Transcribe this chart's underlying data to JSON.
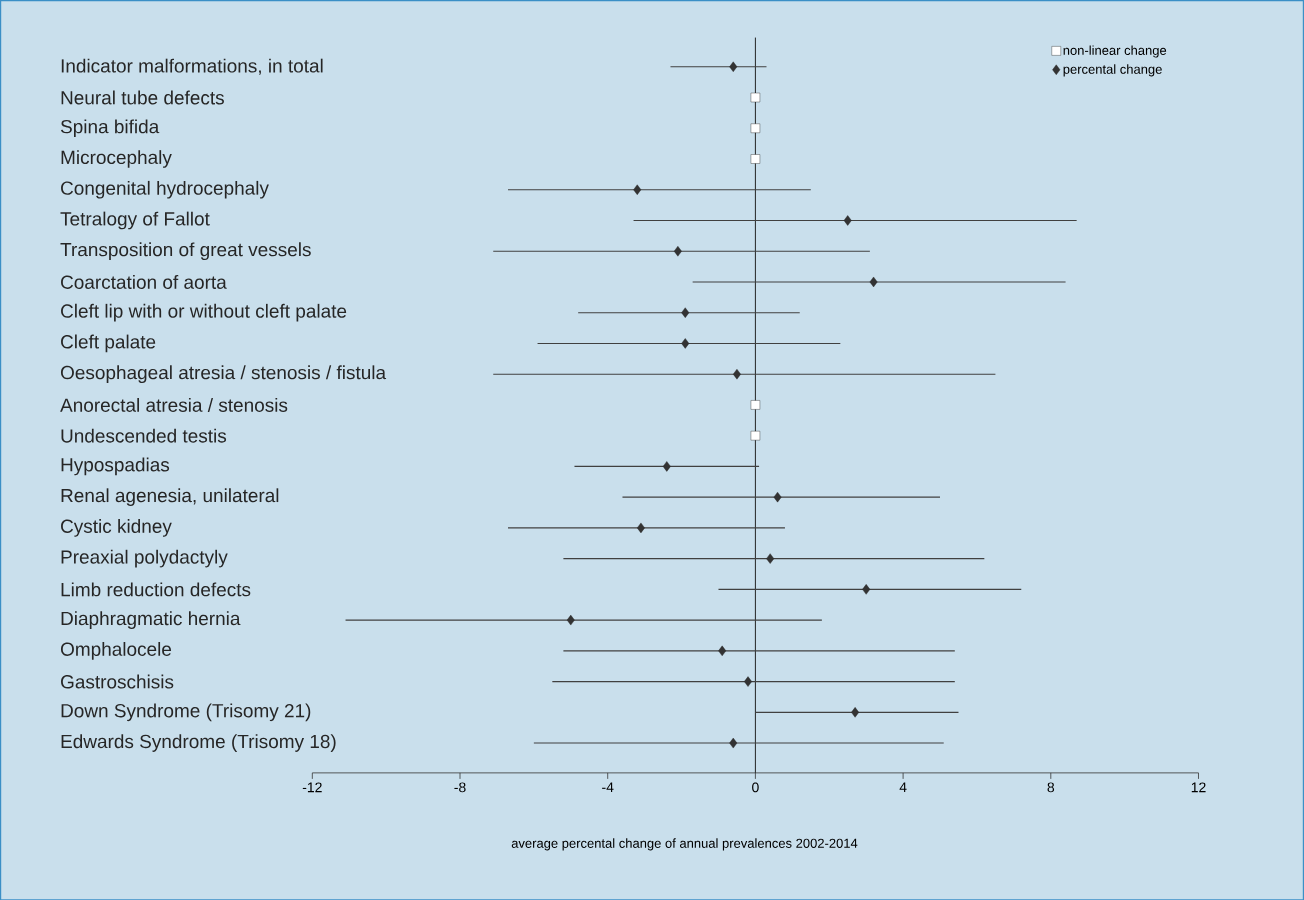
{
  "chart_data": {
    "type": "scatter",
    "orientation": "horizontal",
    "xlabel": "average percental change of annual prevalences 2002-2014",
    "categories": [
      "Indicator malformations, in total",
      "Neural tube defects",
      "Spina bifida",
      "Microcephaly",
      "Congenital hydrocephaly",
      "Tetralogy of Fallot",
      "Transposition of great vessels",
      "Coarctation of aorta",
      "Cleft lip with or without cleft palate",
      "Cleft palate",
      "Oesophageal atresia / stenosis / fistula",
      "Anorectal atresia / stenosis",
      "Undescended testis",
      "Hypospadias",
      "Renal agenesia, unilateral",
      "Cystic kidney",
      "Preaxial polydactyly",
      "Limb reduction defects",
      "Diaphragmatic hernia",
      "Omphalocele",
      "Gastroschisis",
      "Down Syndrome (Trisomy 21)",
      "Edwards Syndrome (Trisomy 18)"
    ],
    "xlim": [
      -12,
      12
    ],
    "xticks": [
      -12,
      -8,
      -4,
      0,
      4,
      8,
      12
    ],
    "legend": "top right",
    "ref_lines": [
      {
        "axis": "x",
        "value": 0,
        "color": "#222222"
      }
    ],
    "series": [
      {
        "name": "non-linear change",
        "color": "#ffffff",
        "marker": "square",
        "values": [
          null,
          0,
          0,
          0,
          null,
          null,
          null,
          null,
          null,
          null,
          null,
          0,
          0,
          null,
          null,
          null,
          null,
          null,
          null,
          null,
          null,
          null,
          null
        ]
      },
      {
        "name": "percental change",
        "color": "#333333",
        "marker": "diamond",
        "values": [
          -0.6,
          null,
          null,
          null,
          -3.2,
          2.5,
          -2.1,
          3.2,
          -1.9,
          -1.9,
          -0.5,
          null,
          null,
          -2.4,
          0.6,
          -3.1,
          0.4,
          3.0,
          -5.0,
          -0.9,
          -0.2,
          2.7,
          -0.6
        ],
        "errors": [
          [
            -2.3,
            0.3
          ],
          null,
          null,
          null,
          [
            -6.7,
            1.5
          ],
          [
            -3.3,
            8.7
          ],
          [
            -7.1,
            3.1
          ],
          [
            -1.7,
            8.4
          ],
          [
            -4.8,
            1.2
          ],
          [
            -5.9,
            2.3
          ],
          [
            -7.1,
            6.5
          ],
          null,
          null,
          [
            -4.9,
            0.1
          ],
          [
            -3.6,
            5.0
          ],
          [
            -6.7,
            0.8
          ],
          [
            -5.2,
            6.2
          ],
          [
            -1.0,
            7.2
          ],
          [
            -11.1,
            1.8
          ],
          [
            -5.2,
            5.4
          ],
          [
            -5.5,
            5.4
          ],
          [
            0,
            5.5
          ],
          [
            -6.0,
            5.1
          ]
        ]
      }
    ]
  }
}
